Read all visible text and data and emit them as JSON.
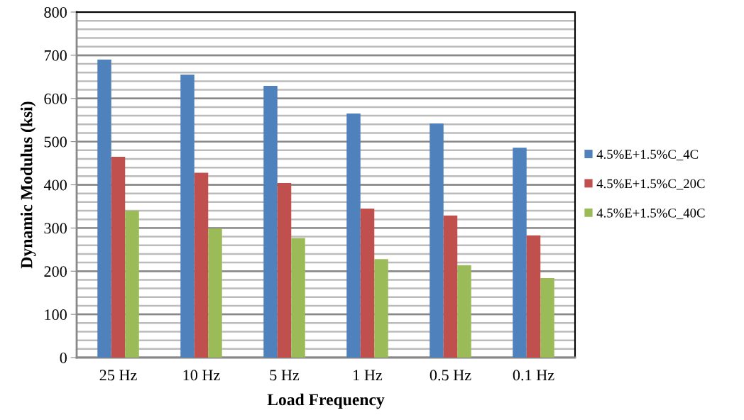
{
  "chart_data": {
    "type": "bar",
    "xlabel": "Load Frequency",
    "ylabel": "Dynamic Modulus (ksi)",
    "categories": [
      "25 Hz",
      "10 Hz",
      "5 Hz",
      "1 Hz",
      "0.5 Hz",
      "0.1 Hz"
    ],
    "series": [
      {
        "name": "4.5%E+1.5%C_4C",
        "color": "#4f81bd",
        "values": [
          690,
          655,
          629,
          565,
          542,
          486
        ]
      },
      {
        "name": "4.5%E+1.5%C_20C",
        "color": "#c0504d",
        "values": [
          465,
          428,
          404,
          345,
          329,
          283
        ]
      },
      {
        "name": "4.5%E+1.5%C_40C",
        "color": "#9bbb59",
        "values": [
          340,
          299,
          277,
          228,
          214,
          184
        ]
      }
    ],
    "ylim": [
      0,
      800
    ],
    "yticks": [
      0,
      100,
      200,
      300,
      400,
      500,
      600,
      700,
      800
    ],
    "grid": "y",
    "legend": "right"
  }
}
